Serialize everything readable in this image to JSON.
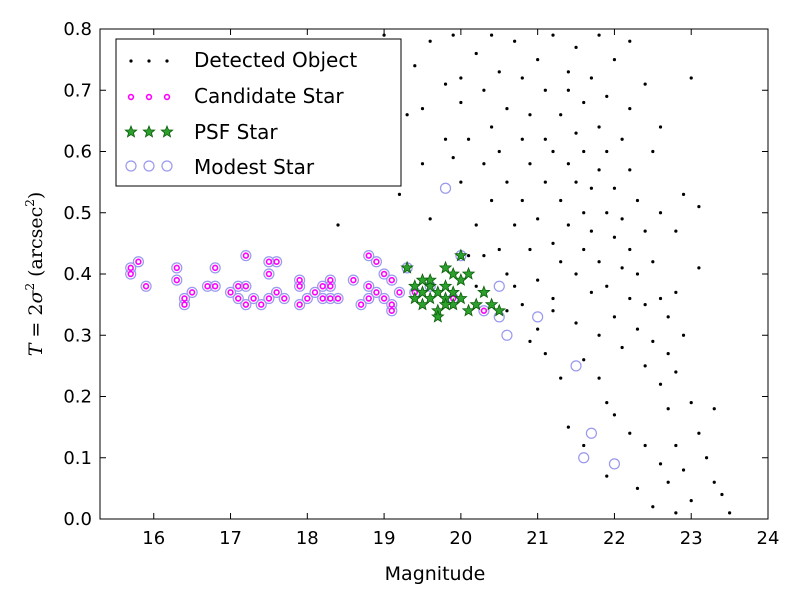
{
  "chart_data": {
    "type": "scatter",
    "xlabel": "Magnitude",
    "ylabel": "T = 2σ² (arcsec²)",
    "ylabel_parts": {
      "T": "T",
      "eq": " = 2",
      "sigma": "σ",
      "open": " (arcsec",
      "sup": "2",
      "close": ")"
    },
    "xlim": [
      15.3,
      24
    ],
    "ylim": [
      0.0,
      0.8
    ],
    "xticks": [
      16,
      17,
      18,
      19,
      20,
      21,
      22,
      23,
      24
    ],
    "yticks": [
      0.0,
      0.1,
      0.2,
      0.3,
      0.4,
      0.5,
      0.6,
      0.7,
      0.8
    ],
    "grid": false,
    "legend_position": "top-left",
    "series": [
      {
        "name": "Detected Object",
        "marker": "dot",
        "color": "#000000",
        "points": [
          [
            18.4,
            0.48
          ],
          [
            19.0,
            0.79
          ],
          [
            19.2,
            0.53
          ],
          [
            19.3,
            0.66
          ],
          [
            19.4,
            0.74
          ],
          [
            19.5,
            0.67
          ],
          [
            19.5,
            0.58
          ],
          [
            19.6,
            0.78
          ],
          [
            19.6,
            0.49
          ],
          [
            19.8,
            0.62
          ],
          [
            19.8,
            0.71
          ],
          [
            19.9,
            0.79
          ],
          [
            20.0,
            0.68
          ],
          [
            20.0,
            0.55
          ],
          [
            20.1,
            0.62
          ],
          [
            20.1,
            0.43
          ],
          [
            20.2,
            0.76
          ],
          [
            20.2,
            0.48
          ],
          [
            20.3,
            0.58
          ],
          [
            20.3,
            0.7
          ],
          [
            20.4,
            0.64
          ],
          [
            20.4,
            0.52
          ],
          [
            20.4,
            0.79
          ],
          [
            20.5,
            0.44
          ],
          [
            20.5,
            0.6
          ],
          [
            20.5,
            0.73
          ],
          [
            20.6,
            0.55
          ],
          [
            20.6,
            0.67
          ],
          [
            20.7,
            0.48
          ],
          [
            20.7,
            0.78
          ],
          [
            20.7,
            0.38
          ],
          [
            20.8,
            0.62
          ],
          [
            20.8,
            0.52
          ],
          [
            20.8,
            0.72
          ],
          [
            20.9,
            0.44
          ],
          [
            20.9,
            0.58
          ],
          [
            20.9,
            0.66
          ],
          [
            21.0,
            0.49
          ],
          [
            21.0,
            0.75
          ],
          [
            21.0,
            0.39
          ],
          [
            21.1,
            0.62
          ],
          [
            21.1,
            0.55
          ],
          [
            21.1,
            0.7
          ],
          [
            21.2,
            0.45
          ],
          [
            21.2,
            0.6
          ],
          [
            21.2,
            0.79
          ],
          [
            21.2,
            0.36
          ],
          [
            21.3,
            0.52
          ],
          [
            21.3,
            0.66
          ],
          [
            21.3,
            0.42
          ],
          [
            21.4,
            0.73
          ],
          [
            21.4,
            0.58
          ],
          [
            21.4,
            0.48
          ],
          [
            21.5,
            0.63
          ],
          [
            21.5,
            0.4
          ],
          [
            21.5,
            0.55
          ],
          [
            21.5,
            0.77
          ],
          [
            21.6,
            0.5
          ],
          [
            21.6,
            0.68
          ],
          [
            21.6,
            0.44
          ],
          [
            21.6,
            0.6
          ],
          [
            21.7,
            0.37
          ],
          [
            21.7,
            0.72
          ],
          [
            21.7,
            0.54
          ],
          [
            21.7,
            0.47
          ],
          [
            21.8,
            0.64
          ],
          [
            21.8,
            0.42
          ],
          [
            21.8,
            0.57
          ],
          [
            21.8,
            0.3
          ],
          [
            21.9,
            0.5
          ],
          [
            21.9,
            0.69
          ],
          [
            21.9,
            0.38
          ],
          [
            21.9,
            0.6
          ],
          [
            22.0,
            0.46
          ],
          [
            22.0,
            0.33
          ],
          [
            22.0,
            0.54
          ],
          [
            22.0,
            0.75
          ],
          [
            22.1,
            0.41
          ],
          [
            22.1,
            0.62
          ],
          [
            22.1,
            0.49
          ],
          [
            22.1,
            0.28
          ],
          [
            22.2,
            0.36
          ],
          [
            22.2,
            0.57
          ],
          [
            22.2,
            0.44
          ],
          [
            22.2,
            0.67
          ],
          [
            22.3,
            0.31
          ],
          [
            22.3,
            0.52
          ],
          [
            22.3,
            0.4
          ],
          [
            22.4,
            0.25
          ],
          [
            22.4,
            0.47
          ],
          [
            22.4,
            0.35
          ],
          [
            22.5,
            0.6
          ],
          [
            22.5,
            0.29
          ],
          [
            22.5,
            0.42
          ],
          [
            22.6,
            0.22
          ],
          [
            22.6,
            0.36
          ],
          [
            22.6,
            0.5
          ],
          [
            22.7,
            0.27
          ],
          [
            22.7,
            0.18
          ],
          [
            22.7,
            0.33
          ],
          [
            22.8,
            0.12
          ],
          [
            22.8,
            0.24
          ],
          [
            22.9,
            0.3
          ],
          [
            22.9,
            0.08
          ],
          [
            23.0,
            0.19
          ],
          [
            23.0,
            0.03
          ],
          [
            23.1,
            0.14
          ],
          [
            23.2,
            0.1
          ],
          [
            23.3,
            0.06
          ],
          [
            23.4,
            0.04
          ],
          [
            23.5,
            0.01
          ],
          [
            22.9,
            0.53
          ],
          [
            23.1,
            0.51
          ],
          [
            21.3,
            0.23
          ],
          [
            21.4,
            0.15
          ],
          [
            21.6,
            0.12
          ],
          [
            21.9,
            0.07
          ],
          [
            22.3,
            0.05
          ],
          [
            22.5,
            0.02
          ],
          [
            22.8,
            0.01
          ],
          [
            21.2,
            0.34
          ],
          [
            21.6,
            0.26
          ],
          [
            21.9,
            0.19
          ],
          [
            22.2,
            0.14
          ],
          [
            22.6,
            0.09
          ],
          [
            21.0,
            0.31
          ],
          [
            20.9,
            0.29
          ],
          [
            21.5,
            0.32
          ],
          [
            21.8,
            0.23
          ],
          [
            22.0,
            0.17
          ],
          [
            22.4,
            0.12
          ],
          [
            22.7,
            0.06
          ],
          [
            23.1,
            0.41
          ],
          [
            23.3,
            0.18
          ],
          [
            22.8,
            0.47
          ],
          [
            23.0,
            0.72
          ],
          [
            21.4,
            0.7
          ],
          [
            20.6,
            0.34
          ],
          [
            20.3,
            0.43
          ],
          [
            20.2,
            0.38
          ],
          [
            20.6,
            0.4
          ],
          [
            20.8,
            0.35
          ],
          [
            21.1,
            0.27
          ],
          [
            22.6,
            0.64
          ],
          [
            22.8,
            0.37
          ],
          [
            22.4,
            0.71
          ],
          [
            22.2,
            0.78
          ],
          [
            21.8,
            0.79
          ],
          [
            20.0,
            0.72
          ],
          [
            19.9,
            0.59
          ]
        ]
      },
      {
        "name": "Candidate Star",
        "marker": "small-circle",
        "color": "#ff00ff",
        "points": [
          [
            15.7,
            0.4
          ],
          [
            15.7,
            0.41
          ],
          [
            15.8,
            0.42
          ],
          [
            15.9,
            0.38
          ],
          [
            16.3,
            0.41
          ],
          [
            16.3,
            0.39
          ],
          [
            16.4,
            0.36
          ],
          [
            16.4,
            0.35
          ],
          [
            16.5,
            0.37
          ],
          [
            16.7,
            0.38
          ],
          [
            16.8,
            0.41
          ],
          [
            16.8,
            0.38
          ],
          [
            17.0,
            0.37
          ],
          [
            17.1,
            0.36
          ],
          [
            17.1,
            0.38
          ],
          [
            17.2,
            0.35
          ],
          [
            17.2,
            0.38
          ],
          [
            17.2,
            0.43
          ],
          [
            17.3,
            0.36
          ],
          [
            17.4,
            0.35
          ],
          [
            17.5,
            0.36
          ],
          [
            17.5,
            0.42
          ],
          [
            17.5,
            0.4
          ],
          [
            17.6,
            0.42
          ],
          [
            17.6,
            0.37
          ],
          [
            17.7,
            0.36
          ],
          [
            17.9,
            0.39
          ],
          [
            17.9,
            0.38
          ],
          [
            17.9,
            0.35
          ],
          [
            18.0,
            0.36
          ],
          [
            18.1,
            0.37
          ],
          [
            18.2,
            0.36
          ],
          [
            18.2,
            0.38
          ],
          [
            18.3,
            0.39
          ],
          [
            18.3,
            0.38
          ],
          [
            18.3,
            0.36
          ],
          [
            18.4,
            0.36
          ],
          [
            18.6,
            0.39
          ],
          [
            18.7,
            0.35
          ],
          [
            18.8,
            0.36
          ],
          [
            18.8,
            0.38
          ],
          [
            18.8,
            0.43
          ],
          [
            18.9,
            0.42
          ],
          [
            18.9,
            0.37
          ],
          [
            19.0,
            0.4
          ],
          [
            19.0,
            0.36
          ],
          [
            19.1,
            0.35
          ],
          [
            19.1,
            0.34
          ],
          [
            19.2,
            0.37
          ],
          [
            19.1,
            0.39
          ],
          [
            19.4,
            0.37
          ],
          [
            19.6,
            0.38
          ],
          [
            19.9,
            0.36
          ],
          [
            20.3,
            0.34
          ]
        ]
      },
      {
        "name": "PSF Star",
        "marker": "star",
        "color": "#2ca02c",
        "points": [
          [
            19.3,
            0.41
          ],
          [
            19.4,
            0.36
          ],
          [
            19.4,
            0.38
          ],
          [
            19.5,
            0.35
          ],
          [
            19.5,
            0.37
          ],
          [
            19.6,
            0.36
          ],
          [
            19.6,
            0.38
          ],
          [
            19.6,
            0.39
          ],
          [
            19.7,
            0.37
          ],
          [
            19.7,
            0.34
          ],
          [
            19.7,
            0.33
          ],
          [
            19.8,
            0.38
          ],
          [
            19.8,
            0.41
          ],
          [
            19.8,
            0.36
          ],
          [
            19.9,
            0.4
          ],
          [
            19.9,
            0.35
          ],
          [
            20.0,
            0.43
          ],
          [
            20.0,
            0.39
          ],
          [
            20.0,
            0.36
          ],
          [
            20.1,
            0.34
          ],
          [
            20.1,
            0.4
          ],
          [
            20.3,
            0.37
          ],
          [
            20.4,
            0.35
          ],
          [
            20.5,
            0.34
          ],
          [
            19.5,
            0.39
          ],
          [
            19.9,
            0.37
          ],
          [
            19.8,
            0.35
          ],
          [
            20.2,
            0.35
          ]
        ]
      },
      {
        "name": "Modest Star",
        "marker": "open-circle",
        "color": "#9999ee",
        "points": [
          [
            15.7,
            0.4
          ],
          [
            15.7,
            0.41
          ],
          [
            15.8,
            0.42
          ],
          [
            15.9,
            0.38
          ],
          [
            16.3,
            0.41
          ],
          [
            16.3,
            0.39
          ],
          [
            16.4,
            0.36
          ],
          [
            16.4,
            0.35
          ],
          [
            16.5,
            0.37
          ],
          [
            16.7,
            0.38
          ],
          [
            16.8,
            0.41
          ],
          [
            16.8,
            0.38
          ],
          [
            17.0,
            0.37
          ],
          [
            17.1,
            0.36
          ],
          [
            17.1,
            0.38
          ],
          [
            17.2,
            0.35
          ],
          [
            17.2,
            0.38
          ],
          [
            17.2,
            0.43
          ],
          [
            17.3,
            0.36
          ],
          [
            17.4,
            0.35
          ],
          [
            17.5,
            0.36
          ],
          [
            17.5,
            0.42
          ],
          [
            17.5,
            0.4
          ],
          [
            17.6,
            0.42
          ],
          [
            17.6,
            0.37
          ],
          [
            17.7,
            0.36
          ],
          [
            17.9,
            0.39
          ],
          [
            17.9,
            0.38
          ],
          [
            17.9,
            0.35
          ],
          [
            18.0,
            0.36
          ],
          [
            18.1,
            0.37
          ],
          [
            18.2,
            0.36
          ],
          [
            18.2,
            0.38
          ],
          [
            18.3,
            0.39
          ],
          [
            18.3,
            0.38
          ],
          [
            18.3,
            0.36
          ],
          [
            18.4,
            0.36
          ],
          [
            18.6,
            0.39
          ],
          [
            18.7,
            0.35
          ],
          [
            18.8,
            0.36
          ],
          [
            18.8,
            0.38
          ],
          [
            18.8,
            0.43
          ],
          [
            18.9,
            0.42
          ],
          [
            18.9,
            0.37
          ],
          [
            19.0,
            0.4
          ],
          [
            19.0,
            0.36
          ],
          [
            19.1,
            0.35
          ],
          [
            19.1,
            0.34
          ],
          [
            19.2,
            0.37
          ],
          [
            19.1,
            0.39
          ],
          [
            19.4,
            0.37
          ],
          [
            19.6,
            0.38
          ],
          [
            19.9,
            0.36
          ],
          [
            20.3,
            0.34
          ],
          [
            20.5,
            0.38
          ],
          [
            20.5,
            0.33
          ],
          [
            20.6,
            0.3
          ],
          [
            21.0,
            0.33
          ],
          [
            19.8,
            0.54
          ],
          [
            21.5,
            0.25
          ],
          [
            21.7,
            0.14
          ],
          [
            21.6,
            0.1
          ],
          [
            22.0,
            0.09
          ],
          [
            19.3,
            0.41
          ],
          [
            20.0,
            0.43
          ]
        ]
      }
    ]
  }
}
